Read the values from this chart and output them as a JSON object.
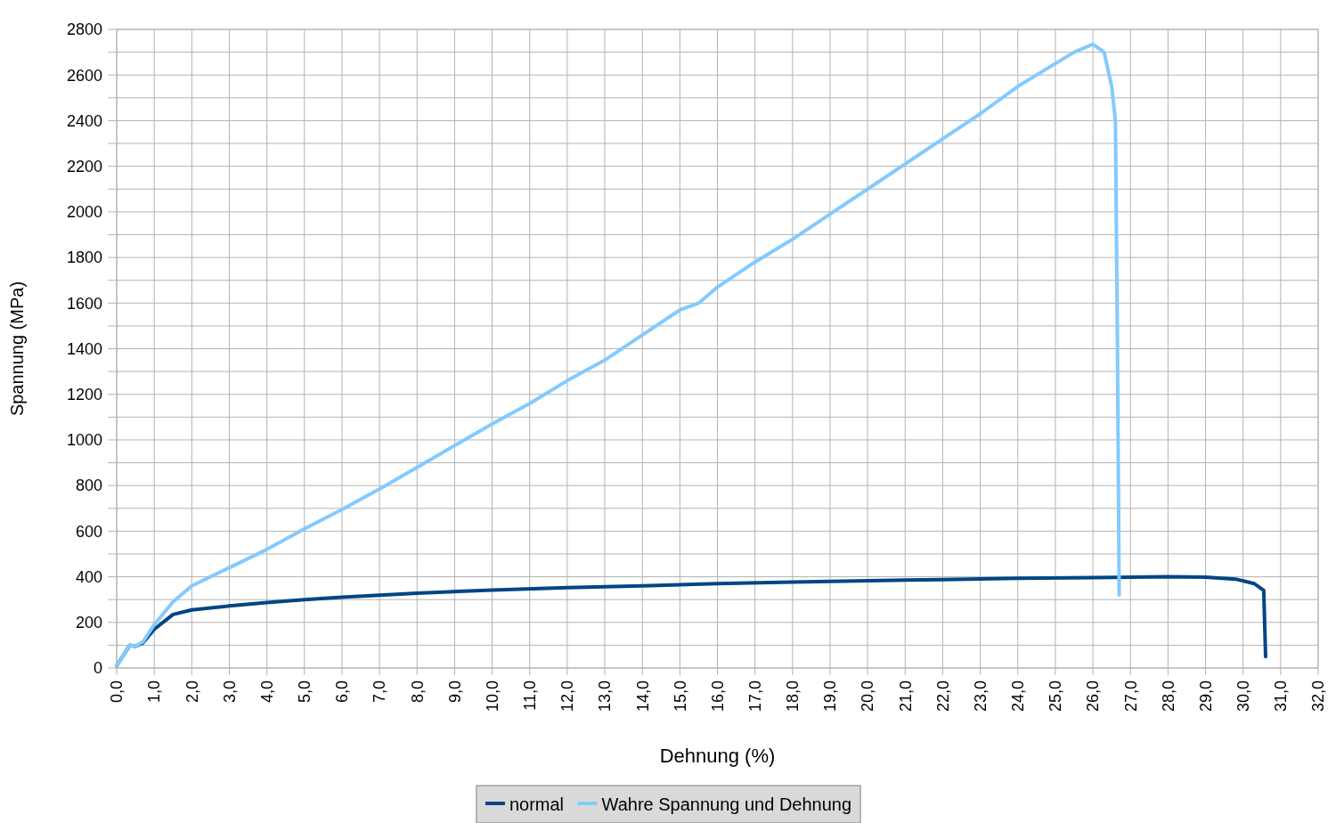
{
  "chart_data": {
    "type": "line",
    "xlabel": "Dehnung (%)",
    "ylabel": "Spannung (MPa)",
    "xlim": [
      0,
      32
    ],
    "ylim": [
      0,
      2800
    ],
    "xticks": [
      {
        "value": 0,
        "label": "0,0"
      },
      {
        "value": 1,
        "label": "1,0"
      },
      {
        "value": 2,
        "label": "2,0"
      },
      {
        "value": 3,
        "label": "3,0"
      },
      {
        "value": 4,
        "label": "4,0"
      },
      {
        "value": 5,
        "label": "5,0"
      },
      {
        "value": 6,
        "label": "6,0"
      },
      {
        "value": 7,
        "label": "7,0"
      },
      {
        "value": 8,
        "label": "8,0"
      },
      {
        "value": 9,
        "label": "9,0"
      },
      {
        "value": 10,
        "label": "10,0"
      },
      {
        "value": 11,
        "label": "11,0"
      },
      {
        "value": 12,
        "label": "12,0"
      },
      {
        "value": 13,
        "label": "13,0"
      },
      {
        "value": 14,
        "label": "14,0"
      },
      {
        "value": 15,
        "label": "15,0"
      },
      {
        "value": 16,
        "label": "16,0"
      },
      {
        "value": 17,
        "label": "17,0"
      },
      {
        "value": 18,
        "label": "18,0"
      },
      {
        "value": 19,
        "label": "19,0"
      },
      {
        "value": 20,
        "label": "20,0"
      },
      {
        "value": 21,
        "label": "21,0"
      },
      {
        "value": 22,
        "label": "22,0"
      },
      {
        "value": 23,
        "label": "23,0"
      },
      {
        "value": 24,
        "label": "24,0"
      },
      {
        "value": 25,
        "label": "25,0"
      },
      {
        "value": 26,
        "label": "26,0"
      },
      {
        "value": 27,
        "label": "27,0"
      },
      {
        "value": 28,
        "label": "28,0"
      },
      {
        "value": 29,
        "label": "29,0"
      },
      {
        "value": 30,
        "label": "30,0"
      },
      {
        "value": 31,
        "label": "31,0"
      },
      {
        "value": 32,
        "label": "32,0"
      }
    ],
    "yticks": [
      0,
      {
        "value": 100,
        "label": null
      },
      200,
      {
        "value": 300,
        "label": null
      },
      400,
      {
        "value": 500,
        "label": null
      },
      600,
      {
        "value": 700,
        "label": null
      },
      800,
      {
        "value": 900,
        "label": null
      },
      1000,
      {
        "value": 1100,
        "label": null
      },
      1200,
      {
        "value": 1300,
        "label": null
      },
      1400,
      {
        "value": 1500,
        "label": null
      },
      1600,
      {
        "value": 1700,
        "label": null
      },
      1800,
      {
        "value": 1900,
        "label": null
      },
      2000,
      {
        "value": 2100,
        "label": null
      },
      2200,
      {
        "value": 2300,
        "label": null
      },
      2400,
      {
        "value": 2500,
        "label": null
      },
      2600,
      {
        "value": 2700,
        "label": null
      },
      2800
    ],
    "grid": true,
    "legend": "bottom",
    "marker": "none",
    "line_style": "solid",
    "series": [
      {
        "name": "normal",
        "color": "#004586",
        "x": [
          0,
          0.35,
          0.5,
          0.7,
          1,
          1.5,
          2,
          3,
          4,
          5,
          6,
          8,
          10,
          12,
          14,
          16,
          18,
          20,
          22,
          24,
          26,
          28,
          29,
          29.8,
          30.3,
          30.55,
          30.6
        ],
        "values": [
          10,
          100,
          95,
          110,
          170,
          235,
          255,
          272,
          287,
          300,
          310,
          328,
          342,
          352,
          360,
          370,
          377,
          383,
          388,
          393,
          396,
          400,
          398,
          390,
          370,
          340,
          50
        ]
      },
      {
        "name": "Wahre Spannung und Dehnung",
        "color": "#83caff",
        "x": [
          0,
          0.35,
          0.5,
          0.7,
          1,
          1.5,
          2,
          3,
          4,
          5,
          6,
          7,
          8,
          9,
          10,
          11,
          12,
          13,
          14,
          15,
          15.5,
          16,
          17,
          18,
          19,
          20,
          21,
          22,
          23,
          24,
          25,
          25.5,
          26,
          26.3,
          26.5,
          26.6,
          26.65,
          26.7
        ],
        "values": [
          10,
          100,
          95,
          115,
          190,
          290,
          360,
          440,
          520,
          610,
          695,
          785,
          880,
          975,
          1070,
          1160,
          1260,
          1350,
          1460,
          1570,
          1600,
          1670,
          1780,
          1880,
          1990,
          2100,
          2210,
          2320,
          2430,
          2550,
          2650,
          2700,
          2735,
          2700,
          2550,
          2400,
          1500,
          320
        ]
      }
    ]
  }
}
